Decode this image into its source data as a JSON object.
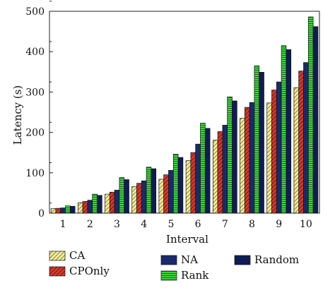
{
  "chart_data": {
    "type": "bar",
    "xlabel": "Interval",
    "ylabel": "Latency (s)",
    "ylim": [
      0,
      500
    ],
    "yticks": [
      0,
      100,
      200,
      300,
      400,
      500
    ],
    "categories": [
      "1",
      "2",
      "3",
      "4",
      "5",
      "6",
      "7",
      "8",
      "9",
      "10"
    ],
    "legend_position": "bottom",
    "series": [
      {
        "name": "CA",
        "color": "#e8e07a",
        "pattern": "diagonal-hatch",
        "values": [
          11,
          26,
          47,
          66,
          84,
          130,
          181,
          235,
          273,
          311
        ]
      },
      {
        "name": "CPOnly",
        "color": "#c0392b",
        "pattern": "diagonal-hatch",
        "values": [
          12,
          29,
          52,
          74,
          95,
          150,
          202,
          262,
          305,
          352
        ]
      },
      {
        "name": "NA",
        "color": "#1a2a6c",
        "pattern": "solid",
        "values": [
          13,
          32,
          57,
          80,
          106,
          171,
          218,
          274,
          325,
          373
        ]
      },
      {
        "name": "Rank",
        "color": "#3ac43a",
        "pattern": "horizontal-lines",
        "values": [
          18,
          47,
          88,
          114,
          146,
          223,
          288,
          365,
          415,
          486
        ]
      },
      {
        "name": "Random",
        "color": "#0f1d55",
        "pattern": "solid",
        "values": [
          17,
          44,
          83,
          110,
          138,
          210,
          278,
          349,
          405,
          462
        ]
      }
    ]
  }
}
